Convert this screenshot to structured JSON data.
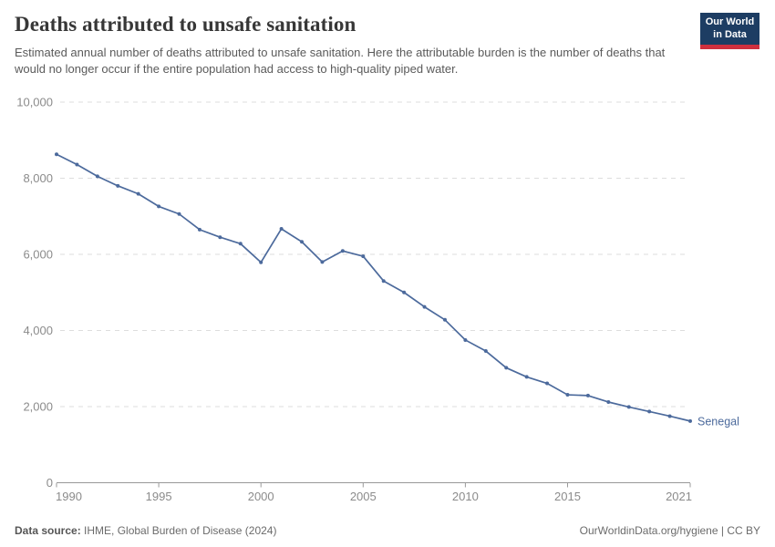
{
  "header": {
    "title": "Deaths attributed to unsafe sanitation",
    "subtitle": "Estimated annual number of deaths attributed to unsafe sanitation. Here the attributable burden is the number of deaths that would no longer occur if the entire population had access to high-quality piped water.",
    "logo": {
      "line1": "Our World",
      "line2": "in Data"
    }
  },
  "chart_data": {
    "type": "line",
    "title": "Deaths attributed to unsafe sanitation",
    "x": [
      1990,
      1991,
      1992,
      1993,
      1994,
      1995,
      1996,
      1997,
      1998,
      1999,
      2000,
      2001,
      2002,
      2003,
      2004,
      2005,
      2006,
      2007,
      2008,
      2009,
      2010,
      2011,
      2012,
      2013,
      2014,
      2015,
      2016,
      2017,
      2018,
      2019,
      2020,
      2021
    ],
    "series": [
      {
        "name": "Senegal",
        "color": "#4c6a9c",
        "values": [
          8630,
          8360,
          8050,
          7800,
          7590,
          7260,
          7060,
          6650,
          6450,
          6280,
          5790,
          6670,
          6330,
          5800,
          6090,
          5950,
          5300,
          5000,
          4620,
          4280,
          3750,
          3460,
          3020,
          2780,
          2610,
          2310,
          2290,
          2120,
          1990,
          1870,
          1750,
          1620
        ]
      }
    ],
    "xlim": [
      1990,
      2021
    ],
    "ylim": [
      0,
      10000
    ],
    "xticks": [
      1990,
      1995,
      2000,
      2005,
      2010,
      2015,
      2021
    ],
    "yticks": [
      0,
      2000,
      4000,
      6000,
      8000,
      10000
    ],
    "xlabel": "",
    "ylabel": "",
    "grid": "horizontal-dashed",
    "legend_position": "end-of-line-label"
  },
  "footer": {
    "source_label": "Data source:",
    "source_text": " IHME, Global Burden of Disease (2024)",
    "credit": "OurWorldinData.org/hygiene | CC BY"
  },
  "colors": {
    "line": "#4c6a9c",
    "grid": "#dddddd",
    "axis": "#999999",
    "tick_label": "#8b8b8b",
    "title": "#373737",
    "subtitle": "#5a5a5a",
    "logo_bg": "#1d3d63",
    "logo_accent": "#cf303e"
  }
}
